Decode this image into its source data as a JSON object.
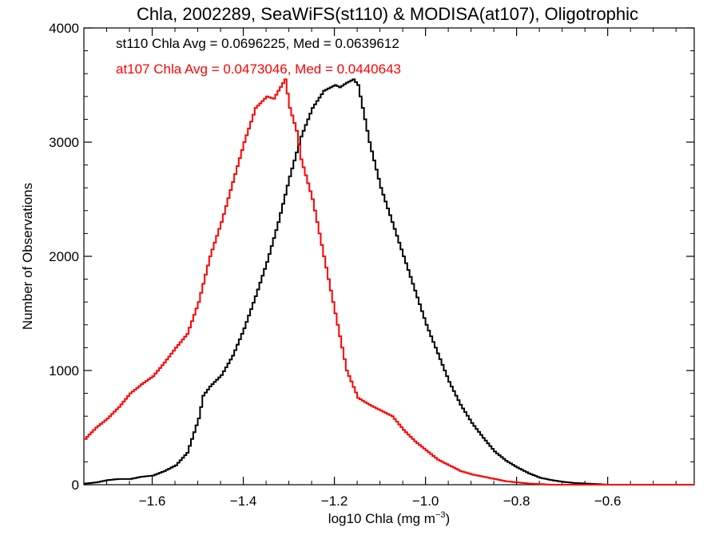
{
  "chart_data": {
    "type": "line",
    "style": "histogram-step",
    "title": "Chla, 2002289, SeaWiFS(st110) & MODISA(at107), Oligotrophic",
    "xlabel_prefix": "log10 Chla (mg m",
    "xlabel_exponent": "−3",
    "xlabel_suffix": ")",
    "ylabel": "Number of Observations",
    "xlim": [
      -1.75,
      -0.41
    ],
    "ylim": [
      0,
      4000
    ],
    "xticks": [
      -1.6,
      -1.4,
      -1.2,
      -1.0,
      -0.8,
      -0.6
    ],
    "xtick_labels": [
      "−1.6",
      "−1.4",
      "−1.2",
      "−1.0",
      "−0.8",
      "−0.6"
    ],
    "yticks": [
      0,
      1000,
      2000,
      3000,
      4000
    ],
    "ytick_labels": [
      "0",
      "1000",
      "2000",
      "3000",
      "4000"
    ],
    "grid": false,
    "annotations": [
      {
        "text": "st110 Chla Avg = 0.0696225, Med = 0.0639612",
        "color": "#000000"
      },
      {
        "text": "at107 Chla Avg = 0.0473046, Med = 0.0440643",
        "color": "#ff0000"
      }
    ],
    "series": [
      {
        "color": "#000000",
        "x": [
          -1.75,
          -1.725,
          -1.7,
          -1.675,
          -1.65,
          -1.625,
          -1.6,
          -1.575,
          -1.55,
          -1.525,
          -1.5,
          -1.49,
          -1.475,
          -1.45,
          -1.425,
          -1.4,
          -1.375,
          -1.35,
          -1.325,
          -1.3,
          -1.275,
          -1.25,
          -1.225,
          -1.2,
          -1.19,
          -1.175,
          -1.16,
          -1.15,
          -1.14,
          -1.125,
          -1.1,
          -1.075,
          -1.05,
          -1.025,
          -1.0,
          -0.975,
          -0.95,
          -0.925,
          -0.9,
          -0.875,
          -0.85,
          -0.825,
          -0.8,
          -0.775,
          -0.75,
          -0.725,
          -0.7,
          -0.675,
          -0.65,
          -0.625,
          -0.6
        ],
        "y": [
          10,
          20,
          40,
          50,
          50,
          70,
          80,
          120,
          170,
          280,
          580,
          780,
          860,
          960,
          1130,
          1370,
          1650,
          1950,
          2300,
          2700,
          3050,
          3300,
          3450,
          3500,
          3480,
          3520,
          3550,
          3500,
          3300,
          3000,
          2600,
          2300,
          2000,
          1700,
          1400,
          1150,
          900,
          700,
          540,
          410,
          290,
          210,
          150,
          100,
          60,
          40,
          25,
          15,
          10,
          5,
          0
        ]
      },
      {
        "color": "#ff0000",
        "x": [
          -1.75,
          -1.725,
          -1.7,
          -1.675,
          -1.65,
          -1.625,
          -1.6,
          -1.575,
          -1.55,
          -1.525,
          -1.5,
          -1.475,
          -1.45,
          -1.425,
          -1.4,
          -1.375,
          -1.35,
          -1.335,
          -1.325,
          -1.31,
          -1.3,
          -1.285,
          -1.275,
          -1.25,
          -1.225,
          -1.2,
          -1.175,
          -1.15,
          -1.125,
          -1.1,
          -1.075,
          -1.05,
          -1.025,
          -1.0,
          -0.975,
          -0.95,
          -0.925,
          -0.9,
          -0.875,
          -0.85,
          -0.825,
          -0.8,
          -0.775,
          -0.75,
          -0.725,
          -0.7,
          -0.675,
          -0.65,
          -0.625,
          -0.6
        ],
        "y": [
          400,
          500,
          580,
          680,
          800,
          880,
          950,
          1070,
          1200,
          1320,
          1600,
          2000,
          2300,
          2650,
          3000,
          3300,
          3400,
          3380,
          3450,
          3550,
          3300,
          3100,
          2850,
          2500,
          2000,
          1500,
          1000,
          760,
          700,
          650,
          600,
          480,
          380,
          300,
          220,
          170,
          120,
          90,
          70,
          50,
          30,
          20,
          10,
          5,
          0,
          0,
          0,
          0,
          0,
          0
        ]
      }
    ]
  }
}
